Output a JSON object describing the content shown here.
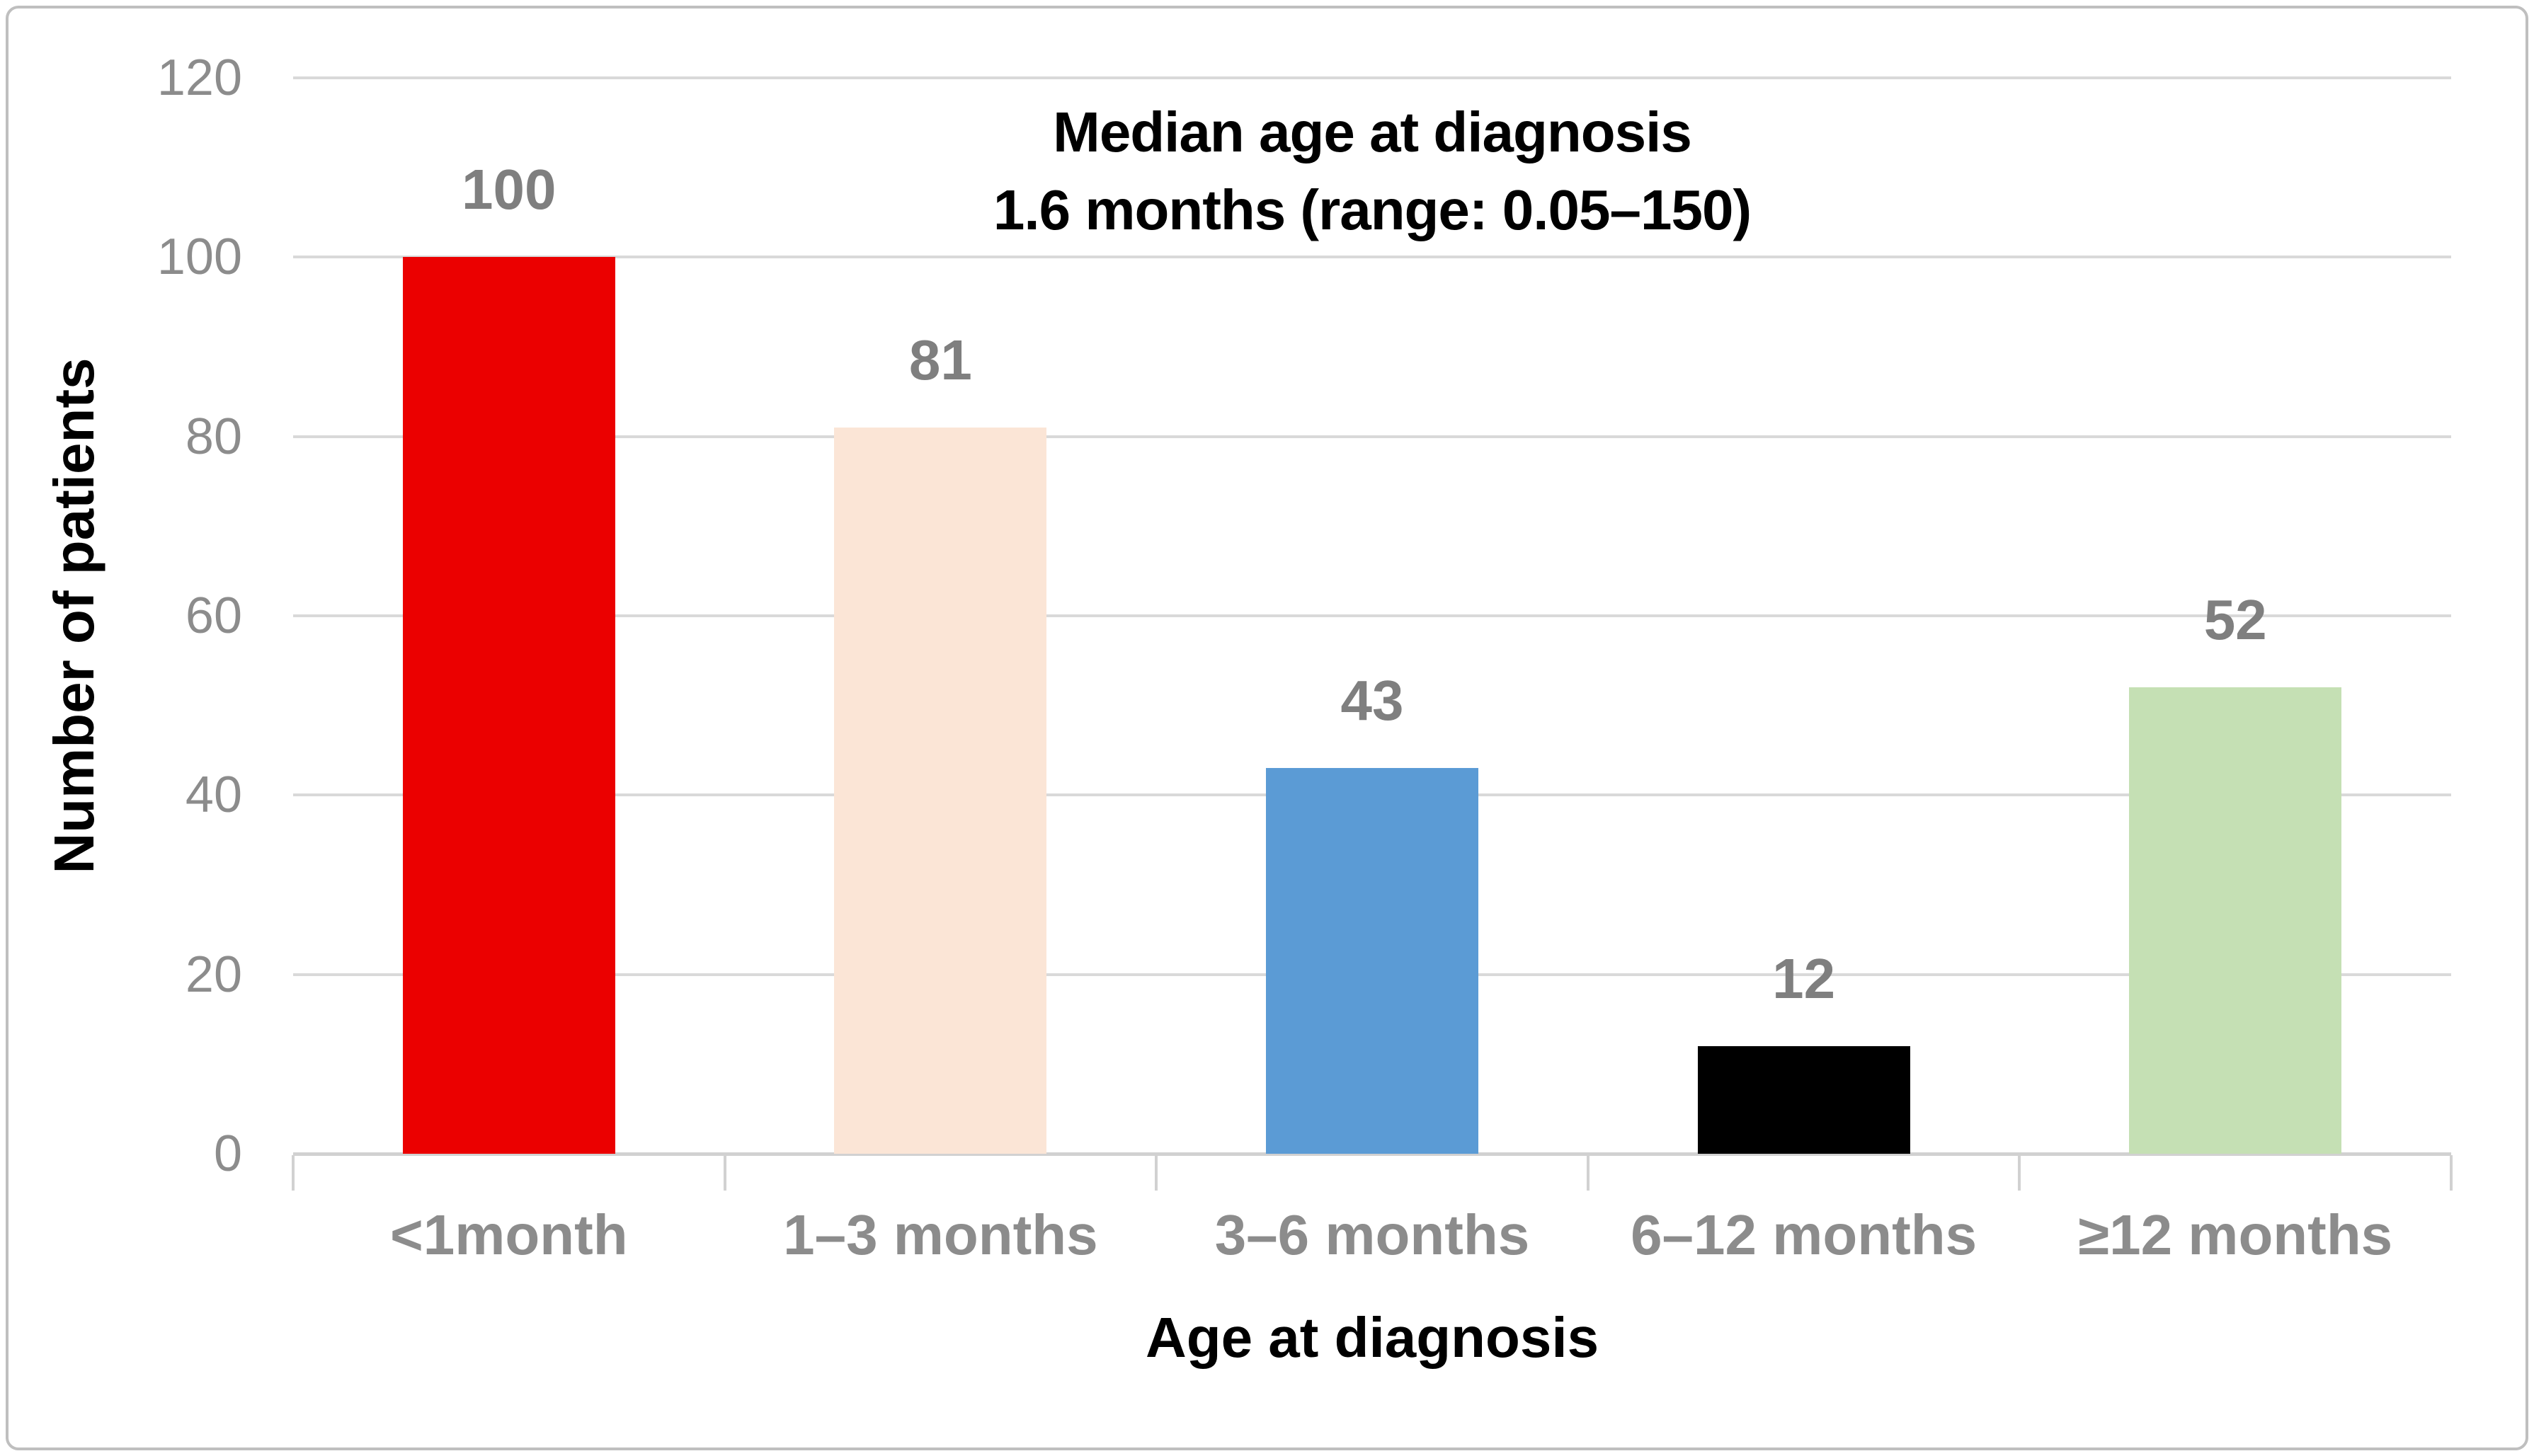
{
  "chart_data": {
    "type": "bar",
    "title": "Median age at diagnosis 1.6 months (range: 0.05–150)",
    "title_lines": [
      "Median age at diagnosis",
      "1.6 months (range: 0.05–150)"
    ],
    "categories": [
      "<1month",
      "1–3 months",
      "3–6 months",
      "6–12 months",
      "≥12 months"
    ],
    "values": [
      100,
      81,
      43,
      12,
      52
    ],
    "bar_colors": [
      "#EB0000",
      "#FBE5D6",
      "#5B9BD5",
      "#000000",
      "#C5E0B4"
    ],
    "data_labels": [
      "100",
      "81",
      "43",
      "12",
      "52"
    ],
    "xlabel": "Age at diagnosis",
    "ylabel": "Number of patients",
    "ylim": [
      0,
      120
    ],
    "yticks": [
      0,
      20,
      40,
      60,
      80,
      100,
      120
    ],
    "grid": true,
    "legend": "none",
    "colors": {
      "gridline": "#D9D9D9",
      "axis_line": "#D1D1D1",
      "frame_border": "#BFBFBF",
      "tick_label": "#8C8C8C",
      "data_label": "#7F7F7F",
      "title_text": "#000000",
      "background": "#FFFFFF"
    }
  }
}
